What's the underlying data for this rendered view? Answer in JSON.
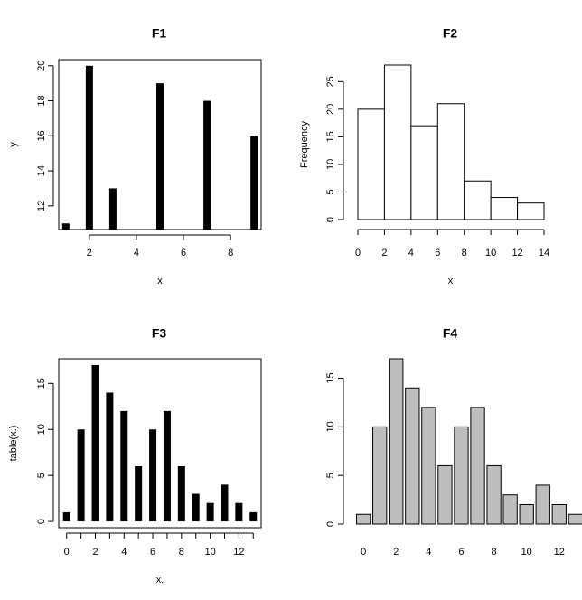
{
  "chart_data": [
    {
      "type": "bar",
      "title": "F1",
      "xlabel": "x",
      "ylabel": "y",
      "x": [
        1,
        2,
        3,
        5,
        7,
        9
      ],
      "values": [
        11,
        20,
        13,
        19,
        18,
        16
      ],
      "xlim": [
        0.7,
        9.3
      ],
      "ylim": [
        10.65,
        20.35
      ],
      "xticks": [
        2,
        4,
        6,
        8
      ],
      "yticks": [
        12,
        14,
        16,
        18,
        20
      ],
      "style": "high-density lines, black"
    },
    {
      "type": "bar",
      "title": "F2",
      "xlabel": "x",
      "ylabel": "Frequency",
      "bins": [
        [
          0,
          2
        ],
        [
          2,
          4
        ],
        [
          4,
          6
        ],
        [
          6,
          8
        ],
        [
          8,
          10
        ],
        [
          10,
          12
        ],
        [
          12,
          14
        ]
      ],
      "values": [
        20,
        28,
        17,
        21,
        7,
        4,
        3
      ],
      "xticks": [
        0,
        2,
        4,
        6,
        8,
        10,
        12,
        14
      ],
      "yticks": [
        0,
        5,
        10,
        15,
        20,
        25
      ],
      "ylim": [
        0,
        28
      ],
      "style": "histogram, white bars with black border, no box"
    },
    {
      "type": "bar",
      "title": "F3",
      "xlabel": "x.",
      "ylabel": "table(x.)",
      "categories": [
        "0",
        "1",
        "2",
        "3",
        "4",
        "5",
        "6",
        "7",
        "8",
        "9",
        "10",
        "11",
        "12",
        "13"
      ],
      "values": [
        1,
        10,
        17,
        14,
        12,
        6,
        10,
        12,
        6,
        3,
        2,
        4,
        2,
        1
      ],
      "xticks": [
        "0",
        "2",
        "4",
        "6",
        "8",
        "10",
        "12"
      ],
      "yticks": [
        0,
        5,
        10,
        15
      ],
      "ylim": [
        0,
        17
      ],
      "style": "table plot, thick black lines, boxed"
    },
    {
      "type": "bar",
      "title": "F4",
      "xlabel": "",
      "ylabel": "",
      "categories": [
        "0",
        "1",
        "2",
        "3",
        "4",
        "5",
        "6",
        "7",
        "8",
        "9",
        "10",
        "11",
        "12",
        "13"
      ],
      "values": [
        1,
        10,
        17,
        14,
        12,
        6,
        10,
        12,
        6,
        3,
        2,
        4,
        2,
        1
      ],
      "xticks": [
        "0",
        "2",
        "4",
        "6",
        "8",
        "10",
        "12"
      ],
      "yticks": [
        0,
        5,
        10,
        15
      ],
      "ylim": [
        0,
        17
      ],
      "colors": {
        "bar_fill": "#bebebe",
        "bar_stroke": "#000000"
      },
      "style": "barplot, grey bars, no box"
    }
  ]
}
